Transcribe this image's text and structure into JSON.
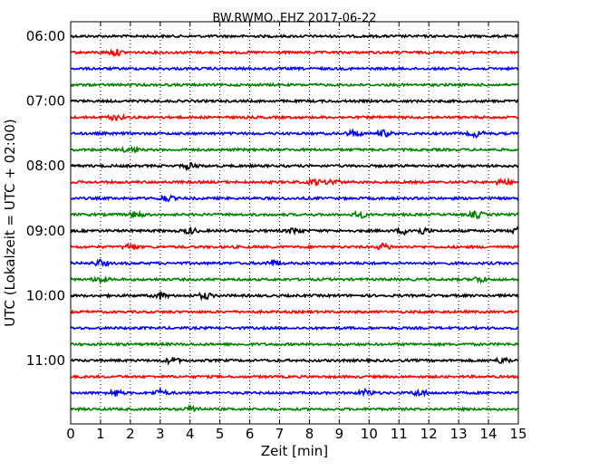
{
  "chart_data": {
    "type": "line",
    "title": "BW.RWMO..EHZ 2017-06-22",
    "xlabel": "Zeit  [min]",
    "ylabel": "UTC (Lokalzeit = UTC + 02:00)",
    "xlim": [
      0,
      15
    ],
    "x_ticks": [
      "0",
      "1",
      "2",
      "3",
      "4",
      "5",
      "6",
      "7",
      "8",
      "9",
      "10",
      "11",
      "12",
      "13",
      "14",
      "15"
    ],
    "y_ticks": [
      "06:00",
      "07:00",
      "08:00",
      "09:00",
      "10:00",
      "11:00"
    ],
    "grid": "vertical-dotted",
    "trace_colors": [
      "#000000",
      "#ff0000",
      "#0000ff",
      "#008000"
    ],
    "traces": [
      {
        "start": "06:00",
        "events": []
      },
      {
        "start": "06:15",
        "events": [
          1.5
        ]
      },
      {
        "start": "06:30",
        "events": []
      },
      {
        "start": "06:45",
        "events": []
      },
      {
        "start": "07:00",
        "events": []
      },
      {
        "start": "07:15",
        "events": [
          1.5
        ]
      },
      {
        "start": "07:30",
        "events": [
          9.5,
          10.5,
          13.6
        ]
      },
      {
        "start": "07:45",
        "events": [
          2.0
        ]
      },
      {
        "start": "08:00",
        "events": [
          4.0
        ]
      },
      {
        "start": "08:15",
        "events": [
          8.2,
          8.8,
          14.5
        ]
      },
      {
        "start": "08:30",
        "events": [
          3.2
        ]
      },
      {
        "start": "08:45",
        "events": [
          2.2,
          9.7,
          13.6
        ]
      },
      {
        "start": "09:00",
        "events": [
          4.0,
          7.5,
          11.2,
          11.8,
          15.0
        ]
      },
      {
        "start": "09:15",
        "events": [
          2.0,
          10.5
        ]
      },
      {
        "start": "09:30",
        "events": [
          1.0,
          6.8
        ]
      },
      {
        "start": "09:45",
        "events": [
          1.0,
          13.7
        ]
      },
      {
        "start": "10:00",
        "events": [
          3.0,
          4.5
        ]
      },
      {
        "start": "10:15",
        "events": []
      },
      {
        "start": "10:30",
        "events": []
      },
      {
        "start": "10:45",
        "events": []
      },
      {
        "start": "11:00",
        "events": [
          3.4,
          14.5
        ]
      },
      {
        "start": "11:15",
        "events": []
      },
      {
        "start": "11:30",
        "events": [
          1.5,
          3.0,
          9.9,
          11.7
        ]
      },
      {
        "start": "11:45",
        "events": [
          4.1
        ]
      }
    ]
  }
}
